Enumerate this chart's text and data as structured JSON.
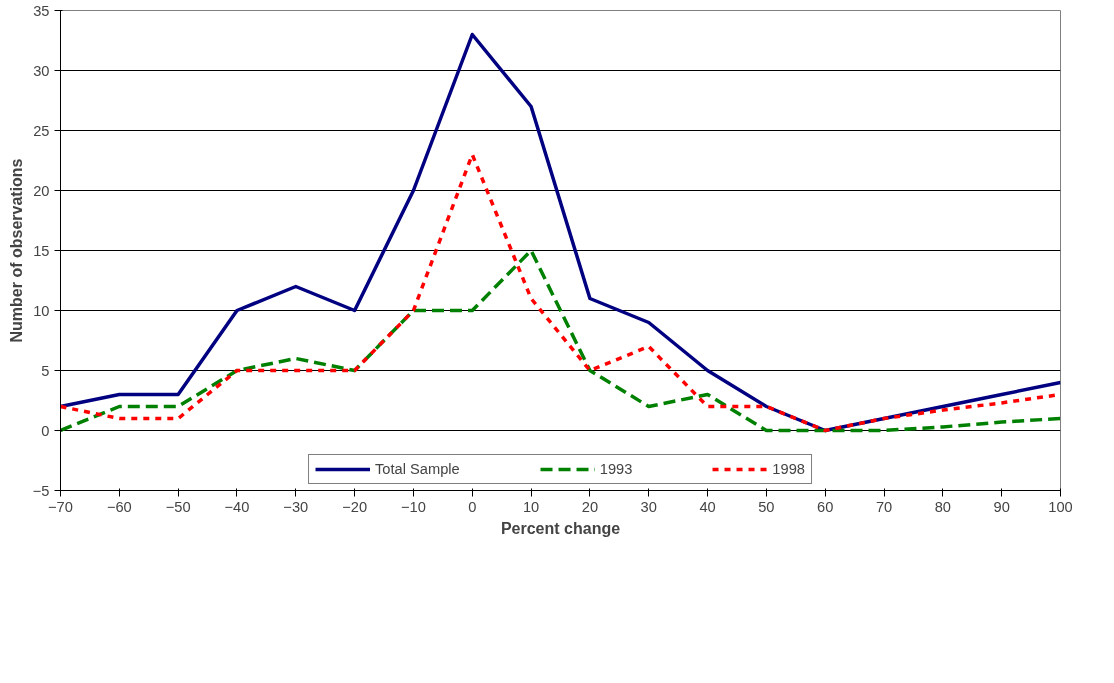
{
  "chart_data": {
    "type": "line",
    "xlabel": "Percent change",
    "ylabel": "Number of observations",
    "xlim": [
      -70,
      100
    ],
    "xticks": [
      -70,
      -60,
      -50,
      -40,
      -30,
      -20,
      -10,
      0,
      10,
      20,
      30,
      40,
      50,
      60,
      70,
      80,
      90,
      100
    ],
    "ylim": [
      -5,
      35
    ],
    "yticks": [
      -5,
      0,
      5,
      10,
      15,
      20,
      25,
      30,
      35
    ],
    "grid": "y",
    "legend": "bottom",
    "marker": "none",
    "x": [
      -70,
      -60,
      -50,
      -40,
      -30,
      -20,
      -10,
      0,
      10,
      20,
      30,
      40,
      50,
      60,
      70,
      80,
      90,
      100
    ],
    "series": [
      {
        "name": "Total Sample",
        "color": "#000080",
        "line_style": "solid",
        "values": [
          2,
          3,
          3,
          10,
          12,
          10,
          20,
          33,
          27,
          11,
          9,
          5,
          2,
          0,
          1,
          2,
          3,
          4
        ]
      },
      {
        "name": "1993",
        "color": "#008000",
        "line_style": "dashed",
        "values": [
          0,
          2,
          2,
          5,
          6,
          5,
          10,
          10,
          15,
          5,
          2,
          3,
          0,
          0,
          0,
          0.3,
          0.7,
          1
        ]
      },
      {
        "name": "1998",
        "color": "#ff0000",
        "line_style": "dotted",
        "values": [
          2,
          1,
          1,
          5,
          5,
          5,
          10,
          23,
          11,
          5,
          7,
          2,
          2,
          0,
          1,
          1.7,
          2.3,
          3
        ]
      }
    ]
  }
}
